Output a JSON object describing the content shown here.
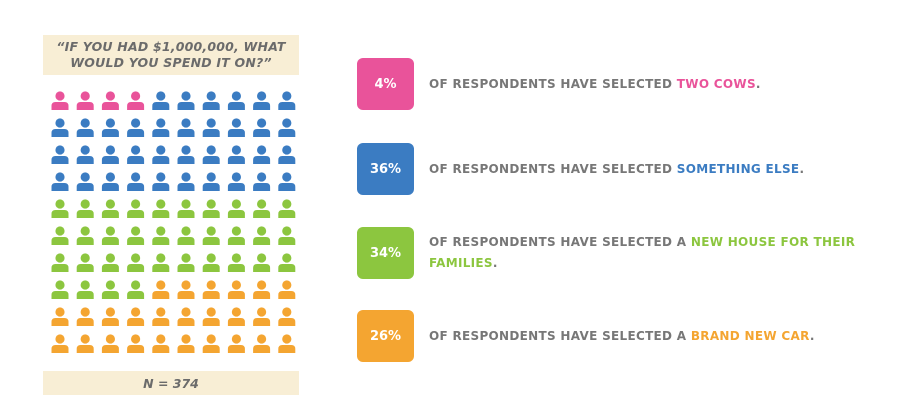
{
  "question": "“IF YOU HAD $1,000,000, WHAT WOULD YOU SPEND IT ON?”",
  "sample_label": "N = 374",
  "colors": {
    "two_cows": "#e9539a",
    "something_else": "#3b7cc2",
    "new_house": "#8cc63f",
    "new_car": "#f4a531",
    "text": "#777777",
    "box_bg": "#f8eed5"
  },
  "chart_data": {
    "type": "pictogram",
    "columns": 10,
    "rows": 10,
    "total_icons": 100,
    "icon": "person-icon",
    "series": [
      {
        "name": "TWO COWS",
        "value": 4,
        "icons": 4,
        "color": "#e9539a"
      },
      {
        "name": "SOMETHING ELSE",
        "value": 36,
        "icons": 36,
        "color": "#3b7cc2"
      },
      {
        "name": "NEW HOUSE FOR THEIR FAMILIES",
        "value": 34,
        "icons": 34,
        "color": "#8cc63f"
      },
      {
        "name": "BRAND NEW CAR",
        "value": 26,
        "icons": 26,
        "color": "#f4a531"
      }
    ]
  },
  "stats": [
    {
      "pct": "4%",
      "lead": "OF RESPONDENTS HAVE SELECTED ",
      "highlight": "TWO COWS",
      "tail": ".",
      "color": "#e9539a"
    },
    {
      "pct": "36%",
      "lead": "OF RESPONDENTS HAVE SELECTED ",
      "highlight": "SOMETHING ELSE",
      "tail": ".",
      "color": "#3b7cc2"
    },
    {
      "pct": "34%",
      "lead": "OF RESPONDENTS HAVE SELECTED A ",
      "highlight": "NEW HOUSE FOR THEIR FAMILIES",
      "tail": ".",
      "color": "#8cc63f"
    },
    {
      "pct": "26%",
      "lead": "OF RESPONDENTS HAVE SELECTED A ",
      "highlight": "BRAND NEW CAR",
      "tail": ".",
      "color": "#f4a531"
    }
  ]
}
